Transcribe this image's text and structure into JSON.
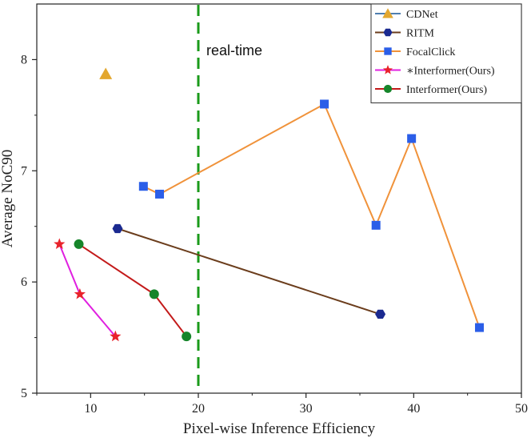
{
  "chart_data": {
    "type": "scatter",
    "title": "",
    "xlabel": "Pixel-wise Inference Efficiency",
    "ylabel": "Average NoC90",
    "xlim": [
      5,
      50
    ],
    "ylim": [
      5,
      8.5
    ],
    "xticks": [
      10,
      20,
      30,
      40,
      50
    ],
    "yticks": [
      5,
      6,
      7,
      8
    ],
    "grid": false,
    "legend_position": "top-right",
    "annotations": [
      {
        "type": "vline",
        "x": 20,
        "label": "real-time",
        "color": "#1a9a1a",
        "style": "dashed"
      }
    ],
    "series": [
      {
        "name": "CDNet",
        "marker": "triangle",
        "color": "#e3a72f",
        "line_color": "#4f7fb0",
        "points": [
          [
            11.4,
            7.87
          ]
        ],
        "legend_symbol": "line"
      },
      {
        "name": "RITM",
        "marker": "hexagon",
        "color": "#1b2a90",
        "line_color": "#6b3d1c",
        "points": [
          [
            12.5,
            6.48
          ],
          [
            36.9,
            5.71
          ]
        ]
      },
      {
        "name": "FocalClick",
        "marker": "square",
        "color": "#2b5ee8",
        "line_color": "#f0923a",
        "points": [
          [
            14.9,
            6.86
          ],
          [
            16.4,
            6.79
          ],
          [
            31.7,
            7.6
          ],
          [
            36.5,
            6.51
          ],
          [
            39.8,
            7.29
          ],
          [
            46.1,
            5.59
          ]
        ]
      },
      {
        "name": "∗Interformer(Ours)",
        "marker": "star",
        "color": "#e8232b",
        "line_color": "#e020e0",
        "points": [
          [
            7.1,
            6.34
          ],
          [
            9.0,
            5.89
          ],
          [
            12.3,
            5.51
          ]
        ]
      },
      {
        "name": "Interformer(Ours)",
        "marker": "circle",
        "color": "#16852a",
        "line_color": "#c31a1a",
        "points": [
          [
            8.9,
            6.34
          ],
          [
            15.9,
            5.89
          ],
          [
            18.9,
            5.51
          ]
        ]
      }
    ]
  }
}
